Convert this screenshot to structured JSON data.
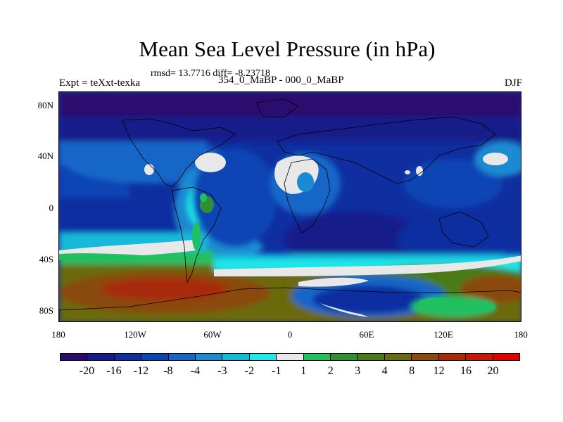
{
  "title": "Mean Sea Level Pressure (in hPa)",
  "stats": "rmsd= 13.7716 diff= -8.23718",
  "experiment": "Expt = teXxt-texka",
  "subtitle": "354_0_MaBP - 000_0_MaBP",
  "season": "DJF",
  "y_labels": [
    "80N",
    "40N",
    "0",
    "40S",
    "80S"
  ],
  "x_labels": [
    "180",
    "120W",
    "60W",
    "0",
    "60E",
    "120E",
    "180"
  ],
  "colorbar": {
    "colors": [
      "#2a0a6e",
      "#161a8a",
      "#0f2fa0",
      "#0a45b5",
      "#1566c8",
      "#1a8ad2",
      "#14b9da",
      "#1ee8e8",
      "#e8e8e8",
      "#20c060",
      "#2e9030",
      "#4a7a18",
      "#6a6a10",
      "#8a4a0c",
      "#a82a08",
      "#c81808",
      "#e00000"
    ],
    "labels": [
      "-20",
      "-16",
      "-12",
      "-8",
      "-4",
      "-3",
      "-2",
      "-1",
      "1",
      "2",
      "3",
      "4",
      "8",
      "12",
      "16",
      "20"
    ]
  }
}
